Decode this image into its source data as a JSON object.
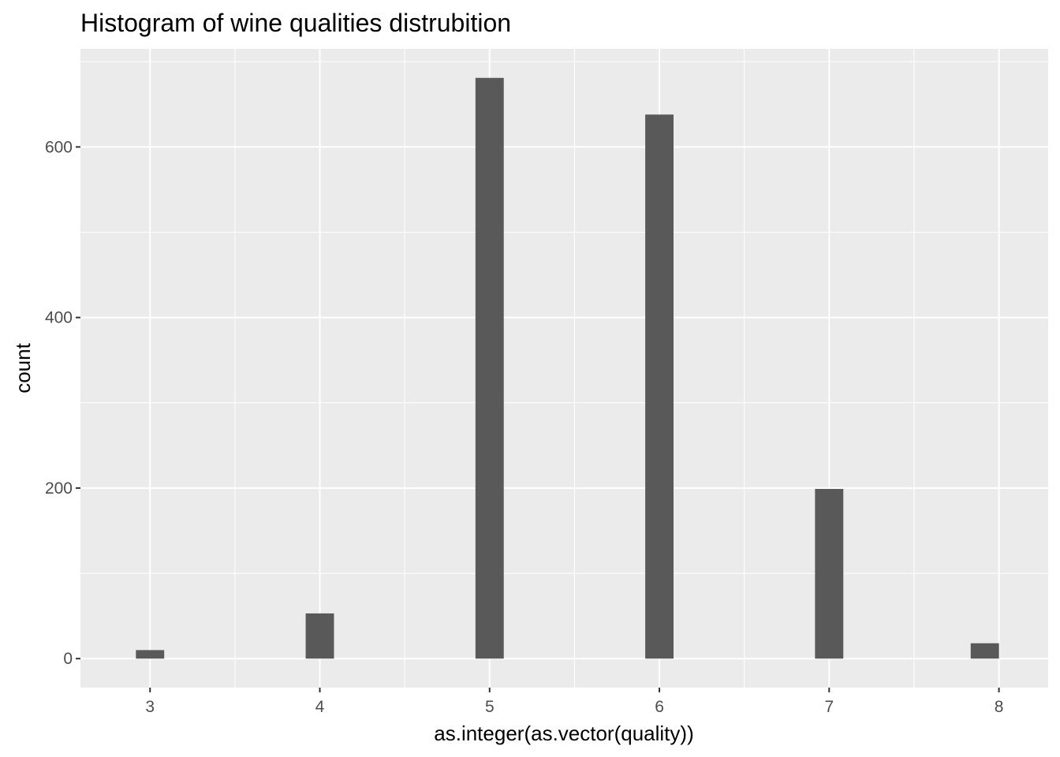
{
  "chart_data": {
    "type": "bar",
    "title": "Histogram of wine qualities distrubition",
    "xlabel": "as.integer(as.vector(quality))",
    "ylabel": "count",
    "x": [
      3,
      3.083,
      4,
      5,
      6,
      7,
      7.917
    ],
    "values": [
      10,
      0,
      53,
      681,
      638,
      199,
      18
    ],
    "bar_width": 0.1667,
    "xlim": [
      2.59,
      8.29
    ],
    "ylim": [
      -34,
      715
    ],
    "x_ticks": [
      "3",
      "4",
      "5",
      "6",
      "7",
      "8"
    ],
    "y_ticks": [
      "0",
      "200",
      "400",
      "600"
    ],
    "grid": true,
    "legend": "none",
    "colors": {
      "panel_background": "#ebebeb",
      "grid": "#ffffff",
      "bar": "#595959",
      "tick_label": "#4d4d4d"
    }
  }
}
